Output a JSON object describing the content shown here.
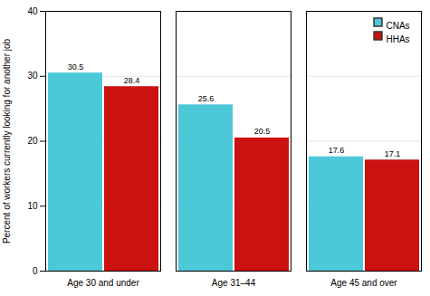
{
  "chart_data": {
    "type": "bar",
    "categories": [
      "Age 30 and under",
      "Age 31–44",
      "Age 45 and over"
    ],
    "series": [
      {
        "name": "CNAs",
        "color": "#4dc8d8",
        "values": [
          30.5,
          25.6,
          17.6
        ]
      },
      {
        "name": "HHAs",
        "color": "#cc1111",
        "values": [
          28.4,
          20.5,
          17.1
        ]
      }
    ],
    "ylabel": "Percent of workers currently looking for another job",
    "ylim": [
      0,
      40
    ],
    "yticks": [
      0,
      10,
      20,
      30,
      40
    ],
    "grid": true,
    "legend": "upper right",
    "data_labels": true
  }
}
